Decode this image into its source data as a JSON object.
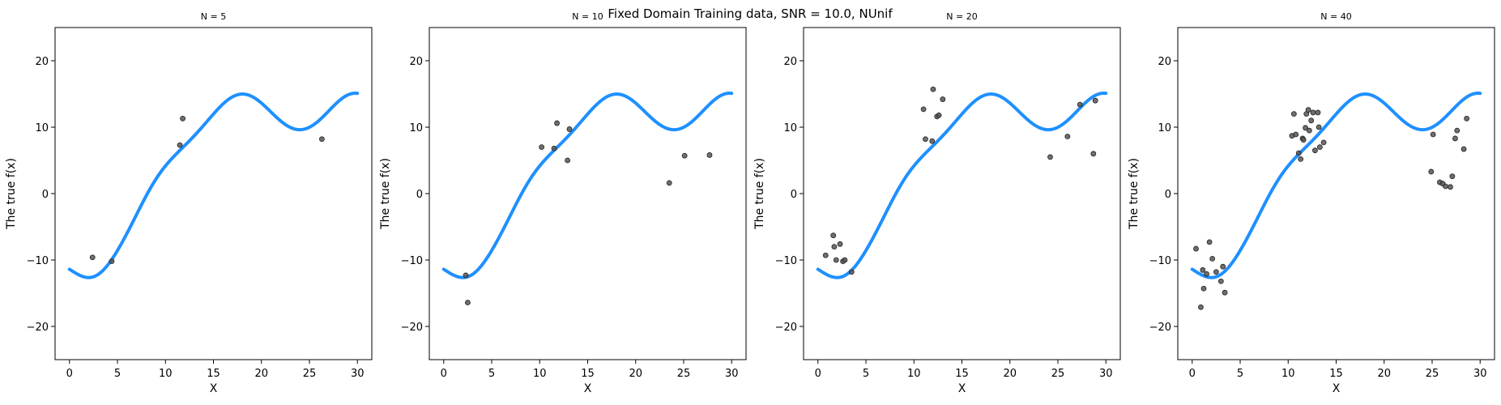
{
  "figure": {
    "suptitle": "Fixed Domain Training data, SNR = 10.0, NUnif"
  },
  "colors": {
    "true_function": "#1e90ff",
    "points": "#555555"
  },
  "chart_data": [
    {
      "type": "scatter",
      "title": "N = 5",
      "xlabel": "X",
      "ylabel": "The true f(x)",
      "xlim": [
        -1.5,
        31.5
      ],
      "ylim": [
        -25,
        25
      ],
      "xticks": [
        0,
        5,
        10,
        15,
        20,
        25,
        30
      ],
      "yticks": [
        -20,
        -10,
        0,
        10,
        20
      ],
      "grid": false,
      "points": [
        [
          2.4,
          -9.6
        ],
        [
          4.4,
          -10.2
        ],
        [
          11.5,
          7.3
        ],
        [
          11.8,
          11.3
        ],
        [
          26.3,
          8.2
        ]
      ]
    },
    {
      "type": "scatter",
      "title": "N = 10",
      "xlabel": "X",
      "ylabel": "The true f(x)",
      "xlim": [
        -1.5,
        31.5
      ],
      "ylim": [
        -25,
        25
      ],
      "xticks": [
        0,
        5,
        10,
        15,
        20,
        25,
        30
      ],
      "yticks": [
        -20,
        -10,
        0,
        10,
        20
      ],
      "grid": false,
      "points": [
        [
          2.3,
          -12.3
        ],
        [
          2.5,
          -16.4
        ],
        [
          10.2,
          7.0
        ],
        [
          11.5,
          6.8
        ],
        [
          11.8,
          10.6
        ],
        [
          12.9,
          5.0
        ],
        [
          13.1,
          9.7
        ],
        [
          23.5,
          1.6
        ],
        [
          25.1,
          5.7
        ],
        [
          27.7,
          5.8
        ]
      ]
    },
    {
      "type": "scatter",
      "title": "N = 20",
      "xlabel": "X",
      "ylabel": "The true f(x)",
      "xlim": [
        -1.5,
        31.5
      ],
      "ylim": [
        -25,
        25
      ],
      "xticks": [
        0,
        5,
        10,
        15,
        20,
        25,
        30
      ],
      "yticks": [
        -20,
        -10,
        0,
        10,
        20
      ],
      "grid": false,
      "points": [
        [
          0.8,
          -9.3
        ],
        [
          1.6,
          -6.3
        ],
        [
          1.7,
          -8.0
        ],
        [
          1.9,
          -10.0
        ],
        [
          2.3,
          -7.6
        ],
        [
          2.6,
          -10.2
        ],
        [
          2.8,
          -10.0
        ],
        [
          3.5,
          -11.8
        ],
        [
          11.0,
          12.7
        ],
        [
          11.2,
          8.2
        ],
        [
          11.9,
          7.9
        ],
        [
          12.0,
          15.7
        ],
        [
          12.4,
          11.6
        ],
        [
          12.6,
          11.8
        ],
        [
          13.0,
          14.2
        ],
        [
          24.2,
          5.5
        ],
        [
          26.0,
          8.6
        ],
        [
          27.3,
          13.4
        ],
        [
          28.7,
          6.0
        ],
        [
          28.9,
          14.0
        ]
      ]
    },
    {
      "type": "scatter",
      "title": "N = 40",
      "xlabel": "X",
      "ylabel": "The true f(x)",
      "xlim": [
        -1.5,
        31.5
      ],
      "ylim": [
        -25,
        25
      ],
      "xticks": [
        0,
        5,
        10,
        15,
        20,
        25,
        30
      ],
      "yticks": [
        -20,
        -10,
        0,
        10,
        20
      ],
      "grid": false,
      "points": [
        [
          0.4,
          -8.3
        ],
        [
          0.9,
          -17.1
        ],
        [
          1.1,
          -11.5
        ],
        [
          1.2,
          -14.3
        ],
        [
          1.5,
          -12.1
        ],
        [
          1.8,
          -7.3
        ],
        [
          2.1,
          -9.8
        ],
        [
          2.5,
          -11.8
        ],
        [
          3.0,
          -13.2
        ],
        [
          3.2,
          -11.0
        ],
        [
          3.4,
          -14.9
        ],
        [
          10.4,
          8.7
        ],
        [
          10.6,
          12.0
        ],
        [
          10.8,
          8.9
        ],
        [
          11.1,
          6.1
        ],
        [
          11.3,
          5.2
        ],
        [
          11.5,
          8.3
        ],
        [
          11.6,
          8.1
        ],
        [
          11.8,
          9.9
        ],
        [
          11.9,
          12.0
        ],
        [
          12.1,
          12.6
        ],
        [
          12.2,
          9.5
        ],
        [
          12.4,
          11.0
        ],
        [
          12.6,
          12.2
        ],
        [
          12.8,
          6.5
        ],
        [
          13.1,
          12.2
        ],
        [
          13.2,
          10.0
        ],
        [
          13.3,
          7.0
        ],
        [
          13.7,
          7.7
        ],
        [
          24.9,
          3.3
        ],
        [
          25.1,
          8.9
        ],
        [
          25.8,
          1.7
        ],
        [
          26.1,
          1.5
        ],
        [
          26.4,
          1.1
        ],
        [
          26.9,
          1.0
        ],
        [
          27.1,
          2.6
        ],
        [
          27.4,
          8.3
        ],
        [
          27.6,
          9.5
        ],
        [
          28.3,
          6.7
        ],
        [
          28.6,
          11.3
        ]
      ]
    }
  ]
}
